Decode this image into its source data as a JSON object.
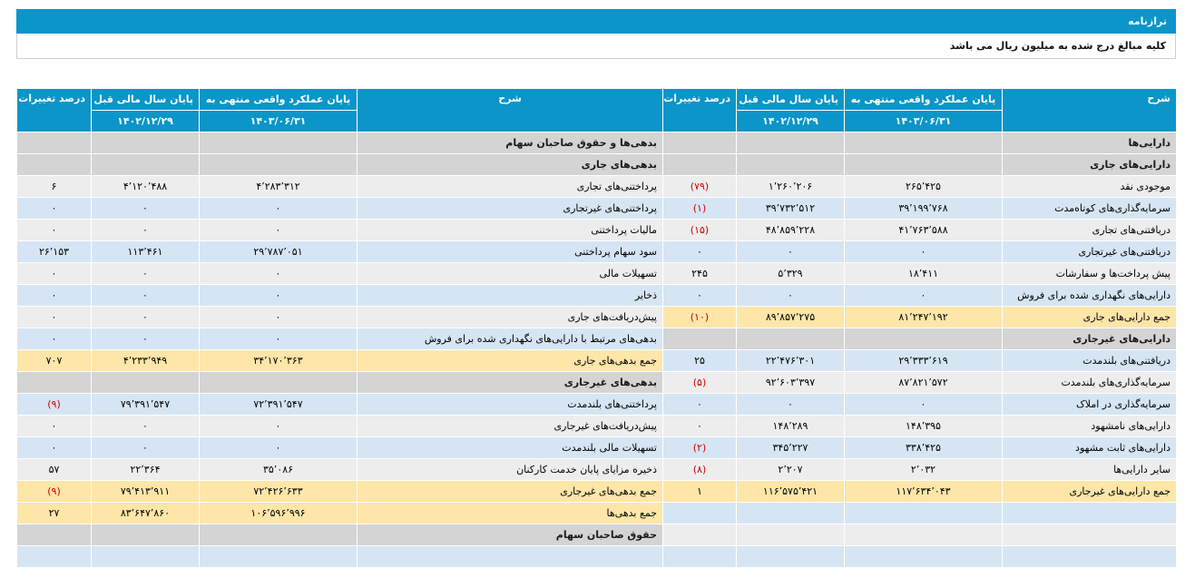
{
  "header": {
    "title": "ترازنامه",
    "note": "کلیه مبالغ درج شده به میلیون ریال می باشد"
  },
  "table": {
    "header": [
      "شرح",
      "پایان عملکرد واقعی منتهی به",
      "پایان سال مالی قبل",
      "درصد تغییرات"
    ],
    "dates": [
      "۱۴۰۳/۰۶/۳۱",
      "۱۴۰۲/۱۲/۲۹"
    ],
    "rows": [
      [
        "دارایی‌ها",
        null,
        null,
        null,
        "بدهی‌ها و حقوق صاحبان سهام",
        null,
        null,
        null
      ],
      [
        "دارایی‌های جاری",
        null,
        null,
        null,
        "بدهی‌های جاری",
        null,
        null,
        null
      ],
      [
        "موجودی نقد",
        "۲۶۵٬۴۲۵",
        "۱٬۲۶۰٬۲۰۶",
        "(۷۹)",
        "پرداختنی‌های تجاری",
        "۴٬۲۸۳٬۳۱۲",
        "۴٬۱۲۰٬۴۸۸",
        "۶"
      ],
      [
        "سرمایه‌گذاری‌های کوتاه‌مدت",
        "۳۹٬۱۹۹٬۷۶۸",
        "۳۹٬۷۳۲٬۵۱۲",
        "(۱)",
        "پرداختنی‌های غیرتجاری",
        "۰",
        "۰",
        "۰"
      ],
      [
        "دریافتنی‌های تجاری",
        "۴۱٬۷۶۳٬۵۸۸",
        "۴۸٬۸۵۹٬۲۲۸",
        "(۱۵)",
        "مالیات پرداختنی",
        "۰",
        "۰",
        "۰"
      ],
      [
        "دریافتنی‌های غیرتجاری",
        "۰",
        "۰",
        "۰",
        "سود سهام پرداختنی",
        "۲۹٬۷۸۷٬۰۵۱",
        "۱۱۳٬۴۶۱",
        "۲۶٬۱۵۳"
      ],
      [
        "پیش پرداخت‌ها و سفارشات",
        "۱۸٬۴۱۱",
        "۵٬۳۲۹",
        "۲۴۵",
        "تسهیلات مالی",
        "۰",
        "۰",
        "۰"
      ],
      [
        "دارایی‌های نگهداری شده برای فروش",
        "۰",
        "۰",
        "۰",
        "ذخایر",
        "۰",
        "۰",
        "۰"
      ],
      [
        "جمع دارایی‌های جاری",
        "۸۱٬۲۴۷٬۱۹۲",
        "۸۹٬۸۵۷٬۲۷۵",
        "(۱۰)",
        "پیش‌دریافت‌های جاری",
        "۰",
        "۰",
        "۰"
      ],
      [
        "دارایی‌های غیرجاری",
        null,
        null,
        null,
        "بدهی‌های مرتبط با دارایی‌های نگهداری شده برای فروش",
        "۰",
        "۰",
        "۰"
      ],
      [
        "دریافتنی‌های بلندمدت",
        "۲۹٬۳۳۳٬۶۱۹",
        "۲۲٬۴۷۶٬۳۰۱",
        "۲۵",
        "جمع بدهی‌های جاری",
        "۳۴٬۱۷۰٬۳۶۳",
        "۴٬۲۳۳٬۹۴۹",
        "۷۰۷"
      ],
      [
        "سرمایه‌گذاری‌های بلندمدت",
        "۸۷٬۸۲۱٬۵۷۲",
        "۹۲٬۶۰۳٬۳۹۷",
        "(۵)",
        "بدهی‌های غیرجاری",
        null,
        null,
        null
      ],
      [
        "سرمایه‌گذاری در املاک",
        "۰",
        "۰",
        "۰",
        "پرداختنی‌های بلندمدت",
        "۷۲٬۳۹۱٬۵۴۷",
        "۷۹٬۳۹۱٬۵۴۷",
        "(۹)"
      ],
      [
        "دارایی‌های نامشهود",
        "۱۴۸٬۳۹۵",
        "۱۴۸٬۲۸۹",
        "۰",
        "پیش‌دریافت‌های غیرجاری",
        "۰",
        "۰",
        "۰"
      ],
      [
        "دارایی‌های ثابت مشهود",
        "۳۳۸٬۴۲۵",
        "۳۴۵٬۲۲۷",
        "(۲)",
        "تسهیلات مالی بلندمدت",
        "۰",
        "۰",
        "۰"
      ],
      [
        "سایر دارایی‌ها",
        "۲٬۰۳۲",
        "۲٬۲۰۷",
        "(۸)",
        "ذخیره مزایای پایان خدمت کارکنان",
        "۳۵٬۰۸۶",
        "۲۲٬۳۶۴",
        "۵۷"
      ],
      [
        "جمع دارایی‌های غیرجاری",
        "۱۱۷٬۶۳۴٬۰۴۳",
        "۱۱۶٬۵۷۵٬۴۲۱",
        "۱",
        "جمع بدهی‌های غیرجاری",
        "۷۲٬۴۲۶٬۶۳۳",
        "۷۹٬۴۱۳٬۹۱۱",
        "(۹)"
      ],
      [
        null,
        null,
        null,
        null,
        "جمع بدهی‌ها",
        "۱۰۶٬۵۹۶٬۹۹۶",
        "۸۳٬۶۴۷٬۸۶۰",
        "۲۷"
      ],
      [
        null,
        null,
        null,
        null,
        "حقوق صاحبان سهام",
        null,
        null,
        null
      ]
    ]
  }
}
